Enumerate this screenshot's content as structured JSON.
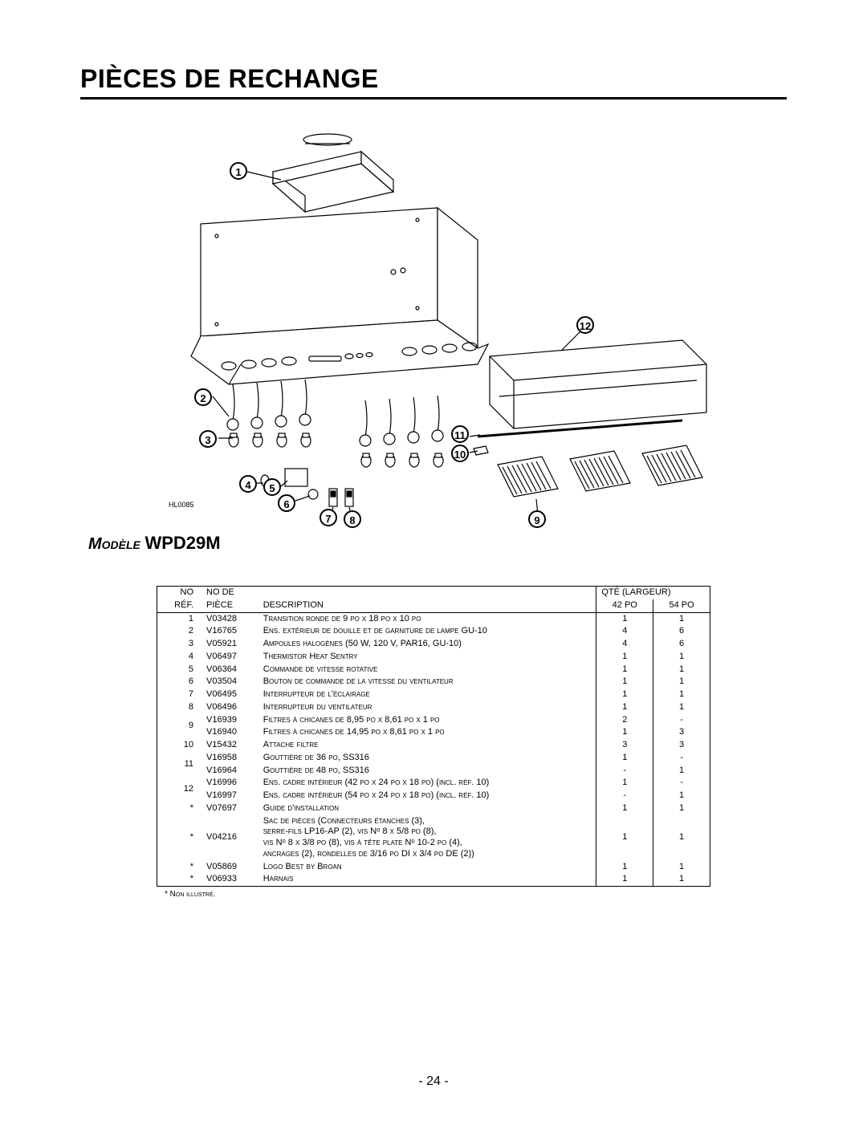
{
  "title": "PIÈCES DE RECHANGE",
  "diagram_code": "HL0085",
  "model_label": "Modèle",
  "model_code": "WPD29M",
  "callouts": {
    "c1": "1",
    "c2": "2",
    "c3": "3",
    "c4": "4",
    "c5": "5",
    "c6": "6",
    "c7": "7",
    "c8": "8",
    "c9": "9",
    "c10": "10",
    "c11": "11",
    "c12": "12"
  },
  "table": {
    "head": {
      "ref_top": "NO",
      "ref_bot": "RÉF.",
      "part_top": "NO DE",
      "part_bot": "PIÈCE",
      "desc": "DESCRIPTION",
      "qty_span": "QTÉ (LARGEUR)",
      "q1": "42 PO",
      "q2": "54 PO"
    },
    "rows": [
      {
        "ref": "1",
        "part": "V03428",
        "desc": "Transition ronde de 9 po x 18 po x 10 po",
        "q1": "1",
        "q2": "1"
      },
      {
        "ref": "2",
        "part": "V16765",
        "desc": "Ens. extérieur de douille et de garniture de lampe GU-10",
        "q1": "4",
        "q2": "6"
      },
      {
        "ref": "3",
        "part": "V05921",
        "desc": "Ampoules halogènes (50 W, 120 V, PAR16, GU-10)",
        "q1": "4",
        "q2": "6"
      },
      {
        "ref": "4",
        "part": "V06497",
        "desc": "Thermistor Heat Sentry",
        "q1": "1",
        "q2": "1"
      },
      {
        "ref": "5",
        "part": "V06364",
        "desc": "Commande de vitesse rotative",
        "q1": "1",
        "q2": "1"
      },
      {
        "ref": "6",
        "part": "V03504",
        "desc": "Bouton de commande de la vitesse du ventilateur",
        "q1": "1",
        "q2": "1"
      },
      {
        "ref": "7",
        "part": "V06495",
        "desc": "Interrupteur de l'éclairage",
        "q1": "1",
        "q2": "1"
      },
      {
        "ref": "8",
        "part": "V06496",
        "desc": "Interrupteur du ventilateur",
        "q1": "1",
        "q2": "1"
      },
      {
        "ref": "9",
        "part": "V16939",
        "desc": "Filtres à chicanes de 8,95 po x 8,61 po x 1 po",
        "q1": "2",
        "q2": "-",
        "rowspan": 2
      },
      {
        "ref": "",
        "part": "V16940",
        "desc": "Filtres à chicanes de 14,95 po x 8,61 po x 1 po",
        "q1": "1",
        "q2": "3"
      },
      {
        "ref": "10",
        "part": "V15432",
        "desc": "Attache filtre",
        "q1": "3",
        "q2": "3"
      },
      {
        "ref": "11",
        "part": "V16958",
        "desc": "Gouttière de 36 po, SS316",
        "q1": "1",
        "q2": "-",
        "rowspan": 2
      },
      {
        "ref": "",
        "part": "V16964",
        "desc": "Gouttière de 48 po, SS316",
        "q1": "-",
        "q2": "1"
      },
      {
        "ref": "12",
        "part": "V16996",
        "desc": "Ens. cadre intérieur (42 po x 24 po x 18 po) (incl. réf. 10)",
        "q1": "1",
        "q2": "-",
        "rowspan": 2
      },
      {
        "ref": "",
        "part": "V16997",
        "desc": "Ens. cadre intérieur (54 po x 24 po x 18 po) (incl. réf. 10)",
        "q1": "-",
        "q2": "1"
      },
      {
        "ref": "*",
        "part": "V07697",
        "desc": "Guide d'installation",
        "q1": "1",
        "q2": "1"
      },
      {
        "ref": "*",
        "part": "V04216",
        "desc": "Sac de pièces (Connecteurs étanches (3),\nserre-fils LP16-AP (2), vis Nᵒ 8 x 5/8 po (8),\nvis Nᵒ 8 x 3/8 po (8), vis à tête plate Nᵒ 10-2 po (4),\nancrages (2), rondelles de 3/16 po DI x 3/4 po DE (2))",
        "q1": "1",
        "q2": "1",
        "multiline": true
      },
      {
        "ref": "*",
        "part": "V05869",
        "desc": "Logo Best by Broan",
        "q1": "1",
        "q2": "1"
      },
      {
        "ref": "*",
        "part": "V06933",
        "desc": "Harnais",
        "q1": "1",
        "q2": "1"
      }
    ],
    "footnote": "* Non illustré."
  },
  "page_number": "- 24 -",
  "colors": {
    "line": "#000000",
    "bg": "#ffffff",
    "fill_light": "#ffffff"
  }
}
